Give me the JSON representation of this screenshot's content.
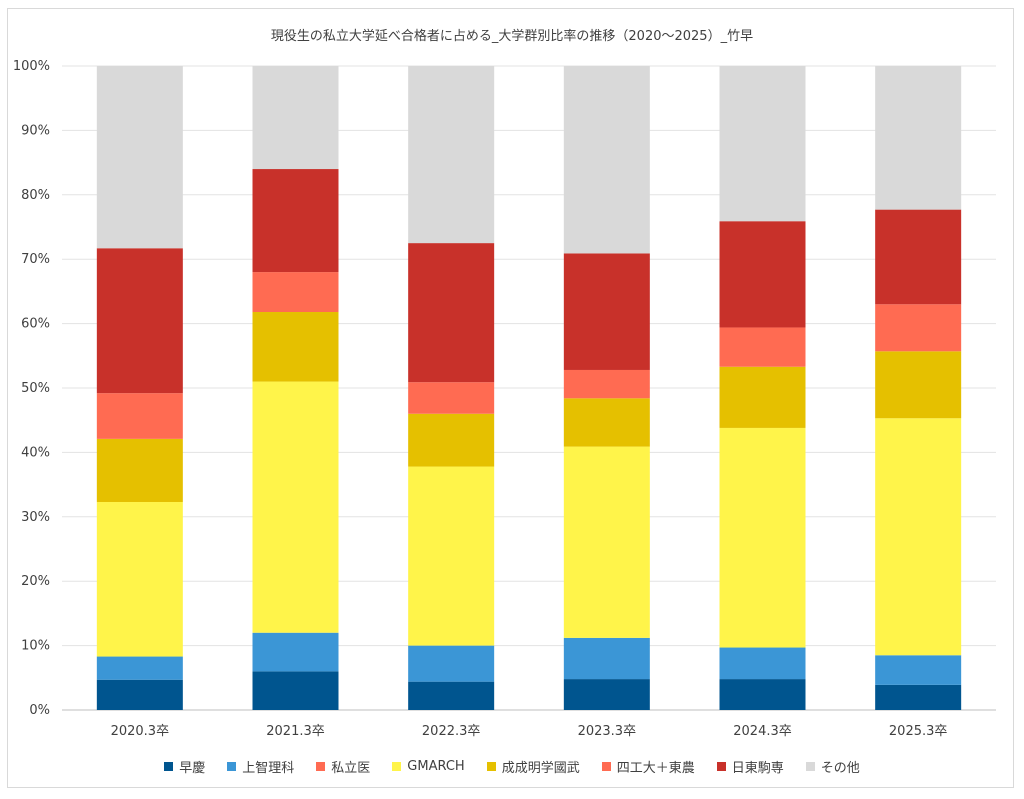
{
  "chart_data": {
    "type": "bar",
    "stacked": true,
    "title": "現役生の私立大学延べ合格者に占める_大学群別比率の推移（2020～2025）_竹早",
    "categories": [
      "2020.3卒",
      "2021.3卒",
      "2022.3卒",
      "2023.3卒",
      "2024.3卒",
      "2025.3卒"
    ],
    "ylim": [
      0,
      100
    ],
    "yticks": [
      "0%",
      "10%",
      "20%",
      "30%",
      "40%",
      "50%",
      "60%",
      "70%",
      "80%",
      "90%",
      "100%"
    ],
    "grid": true,
    "legend_position": "bottom",
    "series": [
      {
        "name": "早慶",
        "color": "#00558f",
        "values": [
          4.7,
          6.0,
          4.4,
          4.8,
          4.8,
          3.9
        ]
      },
      {
        "name": "上智理科",
        "color": "#3b96d6",
        "values": [
          3.6,
          6.0,
          5.6,
          6.4,
          4.9,
          4.6
        ]
      },
      {
        "name": "私立医",
        "color": "#ff6b52",
        "values": [
          0,
          0,
          0,
          0,
          0,
          0
        ]
      },
      {
        "name": "GMARCH",
        "color": "#fff44a",
        "values": [
          24.0,
          39.0,
          27.8,
          29.7,
          34.1,
          36.8
        ]
      },
      {
        "name": "成成明学國武",
        "color": "#e5c000",
        "values": [
          9.8,
          10.8,
          8.2,
          7.5,
          9.5,
          10.4
        ]
      },
      {
        "name": "四工大＋東農",
        "color": "#ff6b52",
        "values": [
          7.1,
          6.2,
          4.9,
          4.4,
          6.1,
          7.3
        ]
      },
      {
        "name": "日東駒専",
        "color": "#c8312a",
        "values": [
          22.5,
          16.0,
          21.6,
          18.1,
          16.5,
          14.7
        ]
      },
      {
        "name": "その他",
        "color": "#d9d9d9",
        "values": [
          28.3,
          16.0,
          27.5,
          29.1,
          24.1,
          22.3
        ]
      }
    ]
  }
}
